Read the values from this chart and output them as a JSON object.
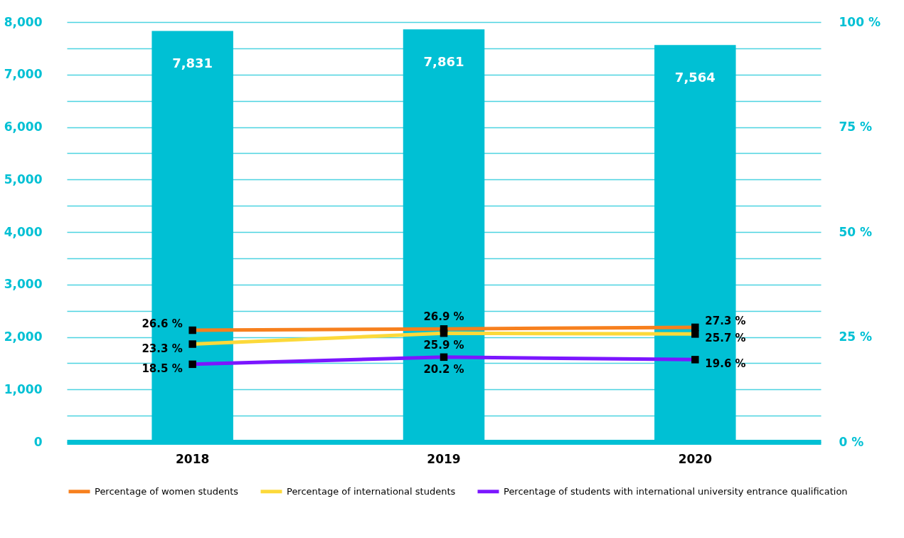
{
  "chart_data": {
    "type": "bar",
    "categories": [
      "2018",
      "2019",
      "2020"
    ],
    "series": [
      {
        "type": "bar",
        "color": "#00c0d4",
        "values": [
          7831,
          7861,
          7564
        ],
        "value_labels": [
          "7,831",
          "7,861",
          "7,564"
        ]
      },
      {
        "type": "line",
        "axis": "y2",
        "name": "Percentage of women students",
        "color": "#f7801e",
        "values": [
          26.6,
          26.9,
          27.3
        ],
        "value_labels": [
          "26.6 %",
          "26.9 %",
          "27.3 %"
        ]
      },
      {
        "type": "line",
        "axis": "y2",
        "name": "Percentage of international students",
        "color": "#fcd93a",
        "values": [
          23.3,
          25.9,
          25.7
        ],
        "value_labels": [
          "23.3 %",
          "25.9 %",
          "25.7 %"
        ]
      },
      {
        "type": "line",
        "axis": "y2",
        "name": "Percentage of students with international university entrance qualification",
        "color": "#7b16ff",
        "values": [
          18.5,
          20.2,
          19.6
        ],
        "value_labels": [
          "18.5 %",
          "20.2 %",
          "19.6 %"
        ]
      }
    ],
    "ylim": [
      0,
      8000
    ],
    "yticks": [
      0,
      {
        "value": 500,
        "label": null
      },
      {
        "value": 1000,
        "label": "1,000"
      },
      {
        "value": 1500,
        "label": null
      },
      {
        "value": 2000,
        "label": "2,000"
      },
      {
        "value": 2500,
        "label": null
      },
      {
        "value": 3000,
        "label": "3,000"
      },
      {
        "value": 3500,
        "label": null
      },
      {
        "value": 4000,
        "label": "4,000"
      },
      {
        "value": 4500,
        "label": null
      },
      {
        "value": 5000,
        "label": "5,000"
      },
      {
        "value": 5500,
        "label": null
      },
      {
        "value": 6000,
        "label": "6,000"
      },
      {
        "value": 6500,
        "label": null
      },
      {
        "value": 7000,
        "label": "7,000"
      },
      {
        "value": 7500,
        "label": null
      },
      {
        "value": 8000,
        "label": "8,000"
      }
    ],
    "y2lim": [
      0,
      100
    ],
    "y2ticks": [
      {
        "value": 0,
        "label": "0 %"
      },
      {
        "value": 25,
        "label": "25 %"
      },
      {
        "value": 50,
        "label": "50 %"
      },
      {
        "value": 75,
        "label": "75 %"
      },
      {
        "value": 100,
        "label": "100 %"
      }
    ],
    "grid": "y",
    "legend": "bottom",
    "marker": "square",
    "line_style": "solid"
  }
}
